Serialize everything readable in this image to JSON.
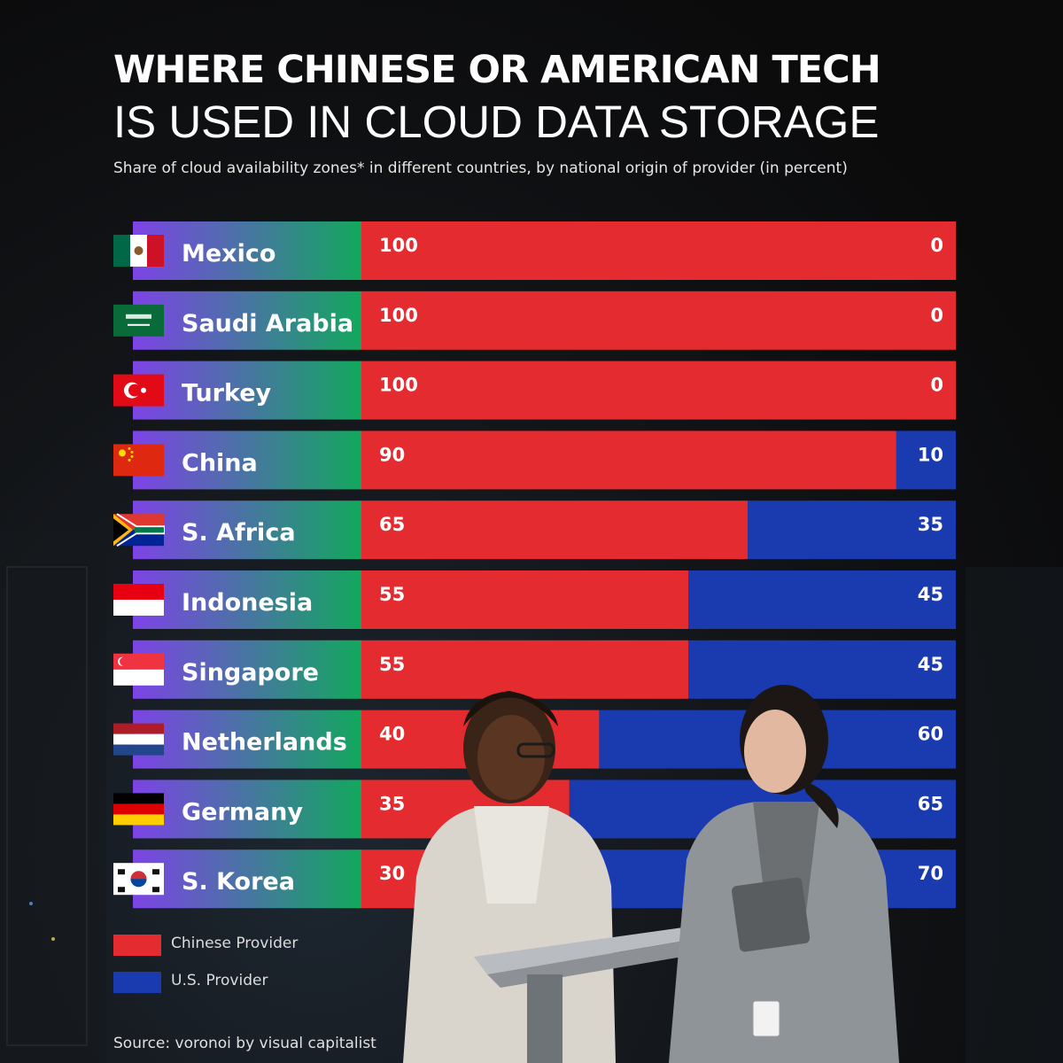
{
  "title_line1": "WHERE CHINESE OR AMERICAN TECH",
  "title_line2": "IS USED IN CLOUD DATA STORAGE",
  "subtitle": "Share of cloud availability zones* in different countries, by national origin of provider (in percent)",
  "source": "Source: voronoi by visual capitalist",
  "colors": {
    "chinese": "#e42b2f",
    "us": "#1a3ab0",
    "label_gradient_start": "#7d43e6",
    "label_gradient_end": "#12a85d"
  },
  "legend": [
    {
      "label": "Chinese Provider",
      "color": "#e42b2f"
    },
    {
      "label": "U.S. Provider",
      "color": "#1a3ab0"
    }
  ],
  "chart_data": {
    "type": "bar",
    "orientation": "horizontal",
    "stacked": true,
    "categories": [
      "Mexico",
      "Saudi Arabia",
      "Turkey",
      "China",
      "S. Africa",
      "Indonesia",
      "Singapore",
      "Netherlands",
      "Germany",
      "S. Korea"
    ],
    "series": [
      {
        "name": "Chinese Provider",
        "values": [
          100,
          100,
          100,
          90,
          65,
          55,
          55,
          40,
          35,
          30
        ]
      },
      {
        "name": "U.S. Provider",
        "values": [
          0,
          0,
          0,
          10,
          35,
          45,
          45,
          60,
          65,
          70
        ]
      }
    ],
    "xlim": [
      0,
      100
    ],
    "legend_position": "bottom-left",
    "flags": [
      "flag-mexico-icon",
      "flag-saudi-arabia-icon",
      "flag-turkey-icon",
      "flag-china-icon",
      "flag-south-africa-icon",
      "flag-indonesia-icon",
      "flag-singapore-icon",
      "flag-netherlands-icon",
      "flag-germany-icon",
      "flag-south-korea-icon"
    ]
  }
}
